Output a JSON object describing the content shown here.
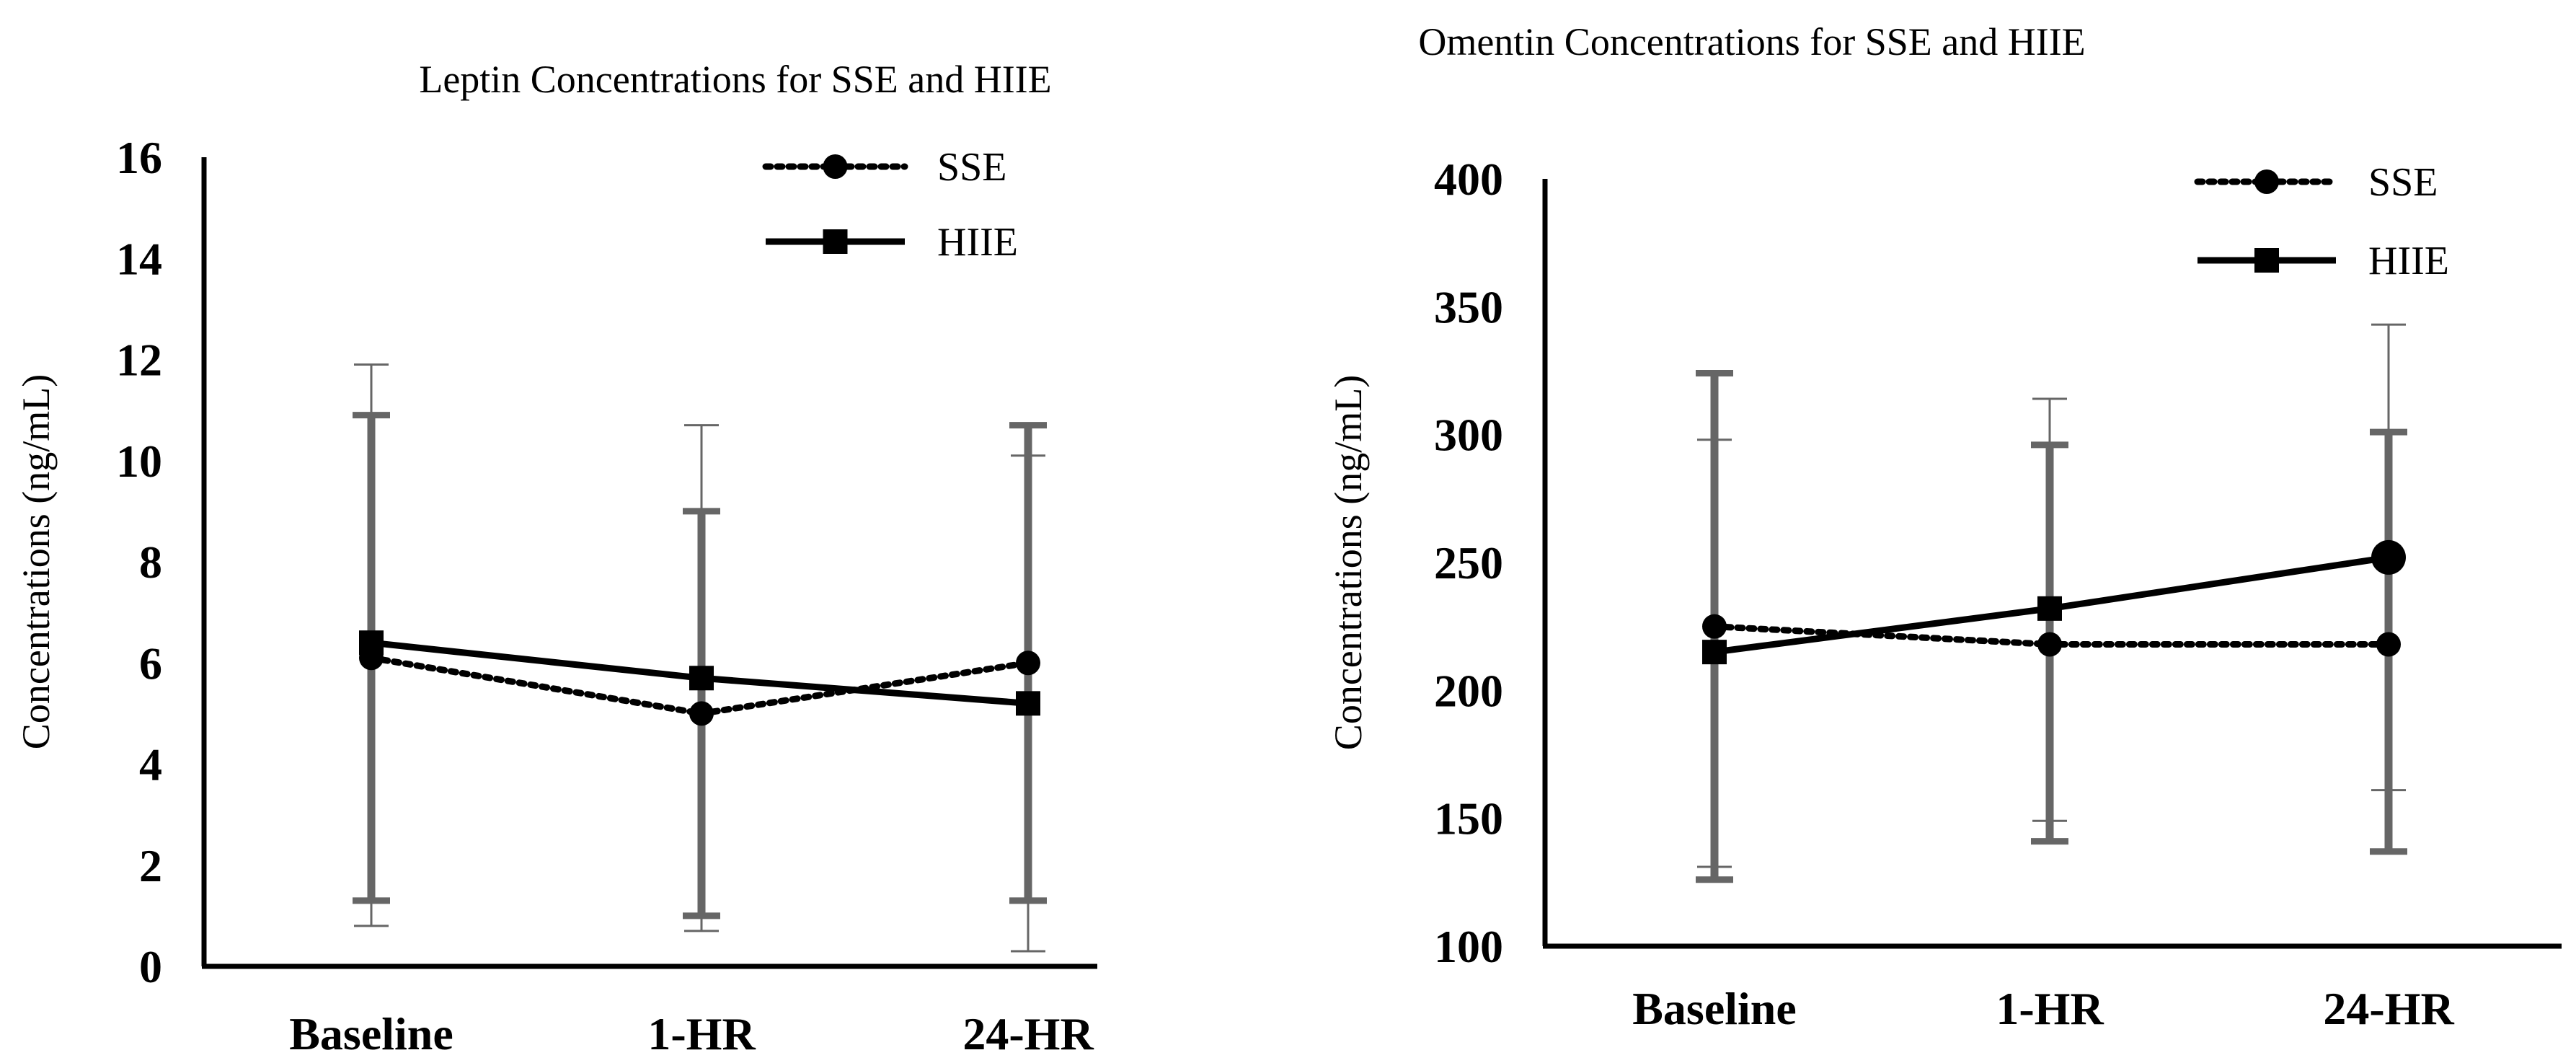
{
  "chart_data": [
    {
      "type": "line",
      "title": "Leptin Concentrations for SSE and HIIE",
      "xlabel": "",
      "ylabel": "Concentrations (ng/mL)",
      "categories": [
        "Baseline",
        "1-HR",
        "24-HR"
      ],
      "ylim": [
        0,
        16
      ],
      "yticks": [
        0,
        2,
        4,
        6,
        8,
        10,
        12,
        14,
        16
      ],
      "legend_position": "top-right",
      "series": [
        {
          "name": "SSE",
          "marker": "circle",
          "line_style": "dotted",
          "values": [
            6.1,
            5.0,
            6.0
          ],
          "error_low": [
            0.8,
            0.7,
            0.3
          ],
          "error_high": [
            11.9,
            10.7,
            10.1
          ]
        },
        {
          "name": "HIIE",
          "marker": "square",
          "line_style": "solid",
          "values": [
            6.4,
            5.7,
            5.2
          ],
          "error_low": [
            1.3,
            1.0,
            1.3
          ],
          "error_high": [
            10.9,
            9.0,
            10.7
          ]
        }
      ]
    },
    {
      "type": "line",
      "title": "Omentin Concentrations for SSE and HIIE",
      "xlabel": "",
      "ylabel": "Concentrations (ng/mL)",
      "categories": [
        "Baseline",
        "1-HR",
        "24-HR"
      ],
      "ylim": [
        100,
        400
      ],
      "yticks": [
        100,
        150,
        200,
        250,
        300,
        350,
        400
      ],
      "legend_position": "top-right",
      "series": [
        {
          "name": "SSE",
          "marker": "circle",
          "line_style": "dotted",
          "values": [
            225,
            218,
            218
          ],
          "error_low": [
            131,
            149,
            161
          ],
          "error_high": [
            298,
            314,
            343
          ]
        },
        {
          "name": "HIIE",
          "marker": "square",
          "line_style": "solid",
          "values": [
            215,
            232,
            252
          ],
          "error_low": [
            126,
            141,
            137
          ],
          "error_high": [
            324,
            296,
            301
          ]
        }
      ]
    }
  ]
}
